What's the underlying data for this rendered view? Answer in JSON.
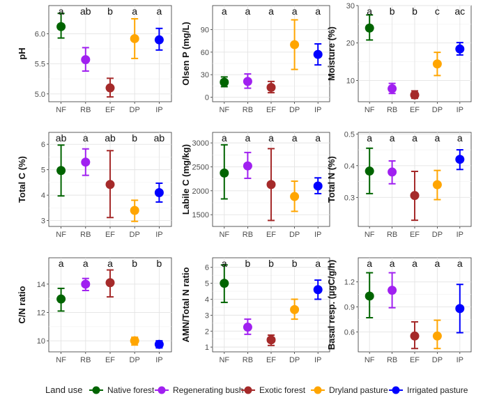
{
  "figure": {
    "categories": [
      "NF",
      "RB",
      "EF",
      "DP",
      "IP"
    ],
    "colors": [
      "#006400",
      "#A020F0",
      "#A52A2A",
      "#FFA500",
      "#0000FF"
    ],
    "legend": {
      "title": "Land use",
      "labels": [
        "Native forest",
        "Regenerating bush",
        "Exotic forest",
        "Dryland pasture",
        "Irrigated pasture"
      ]
    }
  },
  "chart_data": [
    {
      "type": "scatter",
      "title": "",
      "xlabel": "",
      "ylabel": "pH",
      "categories": [
        "NF",
        "RB",
        "EF",
        "DP",
        "IP"
      ],
      "ylim": [
        4.87,
        6.47
      ],
      "ticks": [
        5.0,
        5.5,
        6.0
      ],
      "tick_labels": [
        "5.0",
        "5.5",
        "6.0"
      ],
      "means": [
        6.12,
        5.57,
        5.1,
        5.92,
        5.9
      ],
      "lower": [
        5.93,
        5.38,
        4.95,
        5.59,
        5.73
      ],
      "upper": [
        6.34,
        5.77,
        5.26,
        6.25,
        6.09
      ],
      "letters": [
        "a",
        "ab",
        "b",
        "a",
        "a"
      ]
    },
    {
      "type": "scatter",
      "title": "",
      "xlabel": "",
      "ylabel": "Olsen P (mg/L)",
      "categories": [
        "NF",
        "RB",
        "EF",
        "DP",
        "IP"
      ],
      "ylim": [
        -6,
        122
      ],
      "ticks": [
        0,
        30,
        60,
        90
      ],
      "tick_labels": [
        "0",
        "30",
        "60",
        "90"
      ],
      "means": [
        20,
        21,
        13,
        70,
        57
      ],
      "lower": [
        14,
        12,
        6,
        37,
        43
      ],
      "upper": [
        27,
        31,
        21,
        103,
        71
      ],
      "letters": [
        "a",
        "a",
        "a",
        "a",
        "a"
      ]
    },
    {
      "type": "scatter",
      "title": "",
      "xlabel": "",
      "ylabel": "Moisture (%)",
      "categories": [
        "NF",
        "RB",
        "EF",
        "DP",
        "IP"
      ],
      "ylim": [
        4.3,
        30
      ],
      "ticks": [
        10,
        20,
        30
      ],
      "tick_labels": [
        "10",
        "20",
        "30"
      ],
      "means": [
        24.0,
        7.8,
        6.1,
        14.4,
        18.4
      ],
      "lower": [
        20.8,
        6.5,
        5.2,
        11.3,
        16.8
      ],
      "upper": [
        27.5,
        9.2,
        7.2,
        17.5,
        20.1
      ],
      "letters": [
        "a",
        "b",
        "b",
        "c",
        "ac"
      ]
    },
    {
      "type": "scatter",
      "title": "",
      "xlabel": "",
      "ylabel": "Total C (%)",
      "categories": [
        "NF",
        "RB",
        "EF",
        "DP",
        "IP"
      ],
      "ylim": [
        2.77,
        6.47
      ],
      "ticks": [
        3,
        4,
        5,
        6
      ],
      "tick_labels": [
        "3",
        "4",
        "5",
        "6"
      ],
      "means": [
        4.97,
        5.3,
        4.42,
        3.4,
        4.1
      ],
      "lower": [
        3.97,
        4.78,
        3.12,
        2.97,
        3.73
      ],
      "upper": [
        5.97,
        5.82,
        5.75,
        3.8,
        4.47
      ],
      "letters": [
        "ab",
        "a",
        "ab",
        "b",
        "ab"
      ]
    },
    {
      "type": "scatter",
      "title": "",
      "xlabel": "",
      "ylabel": "Labile C (mg/kg)",
      "categories": [
        "NF",
        "RB",
        "EF",
        "DP",
        "IP"
      ],
      "ylim": [
        1255,
        3220
      ],
      "ticks": [
        1500,
        2000,
        2500,
        3000
      ],
      "tick_labels": [
        "1500",
        "2000",
        "2500",
        "3000"
      ],
      "means": [
        2370,
        2520,
        2130,
        1880,
        2100
      ],
      "lower": [
        1830,
        2260,
        1380,
        1570,
        1940
      ],
      "upper": [
        2960,
        2800,
        2880,
        2200,
        2270
      ],
      "letters": [
        "a",
        "a",
        "a",
        "a",
        "a"
      ]
    },
    {
      "type": "scatter",
      "title": "",
      "xlabel": "",
      "ylabel": "Total N (%)",
      "categories": [
        "NF",
        "RB",
        "EF",
        "DP",
        "IP"
      ],
      "ylim": [
        0.2085,
        0.505
      ],
      "ticks": [
        0.3,
        0.4,
        0.5
      ],
      "tick_labels": [
        "0.3",
        "0.4",
        "0.5"
      ],
      "means": [
        0.383,
        0.38,
        0.306,
        0.34,
        0.42
      ],
      "lower": [
        0.312,
        0.343,
        0.228,
        0.293,
        0.388
      ],
      "upper": [
        0.455,
        0.415,
        0.382,
        0.385,
        0.45
      ],
      "letters": [
        "a",
        "a",
        "a",
        "a",
        "a"
      ]
    },
    {
      "type": "scatter",
      "title": "",
      "xlabel": "",
      "ylabel": "C/N ratio",
      "categories": [
        "NF",
        "RB",
        "EF",
        "DP",
        "IP"
      ],
      "ylim": [
        9.22,
        15.86
      ],
      "ticks": [
        10,
        12,
        14
      ],
      "tick_labels": [
        "10",
        "12",
        "14"
      ],
      "means": [
        12.95,
        14.0,
        14.1,
        10.0,
        9.75
      ],
      "lower": [
        12.1,
        13.55,
        13.1,
        9.7,
        9.5
      ],
      "upper": [
        13.7,
        14.4,
        15.0,
        10.25,
        10.0
      ],
      "letters": [
        "a",
        "a",
        "a",
        "b",
        "b"
      ]
    },
    {
      "type": "scatter",
      "title": "",
      "xlabel": "",
      "ylabel": "AMN/Total N ratio",
      "categories": [
        "NF",
        "RB",
        "EF",
        "DP",
        "IP"
      ],
      "ylim": [
        0.7,
        6.6
      ],
      "ticks": [
        1,
        2,
        3,
        4,
        5,
        6
      ],
      "tick_labels": [
        "1",
        "2",
        "3",
        "4",
        "5",
        "6"
      ],
      "means": [
        5.0,
        2.25,
        1.45,
        3.35,
        4.6
      ],
      "lower": [
        3.8,
        1.8,
        1.1,
        2.75,
        4.0
      ],
      "upper": [
        6.15,
        2.75,
        1.75,
        4.0,
        5.2
      ],
      "letters": [
        "a",
        "b",
        "b",
        "b",
        "a"
      ]
    },
    {
      "type": "scatter",
      "title": "",
      "xlabel": "",
      "ylabel": "Basal resp. (µgC/g/h)",
      "categories": [
        "NF",
        "RB",
        "EF",
        "DP",
        "IP"
      ],
      "ylim": [
        0.36,
        1.49
      ],
      "ticks": [
        0.6,
        0.9,
        1.2
      ],
      "tick_labels": [
        "0.6",
        "0.9",
        "1.2"
      ],
      "means": [
        1.03,
        1.1,
        0.55,
        0.55,
        0.88
      ],
      "lower": [
        0.77,
        0.89,
        0.4,
        0.4,
        0.59
      ],
      "upper": [
        1.31,
        1.31,
        0.72,
        0.74,
        1.17
      ],
      "letters": [
        "a",
        "a",
        "a",
        "a",
        "a"
      ]
    }
  ]
}
